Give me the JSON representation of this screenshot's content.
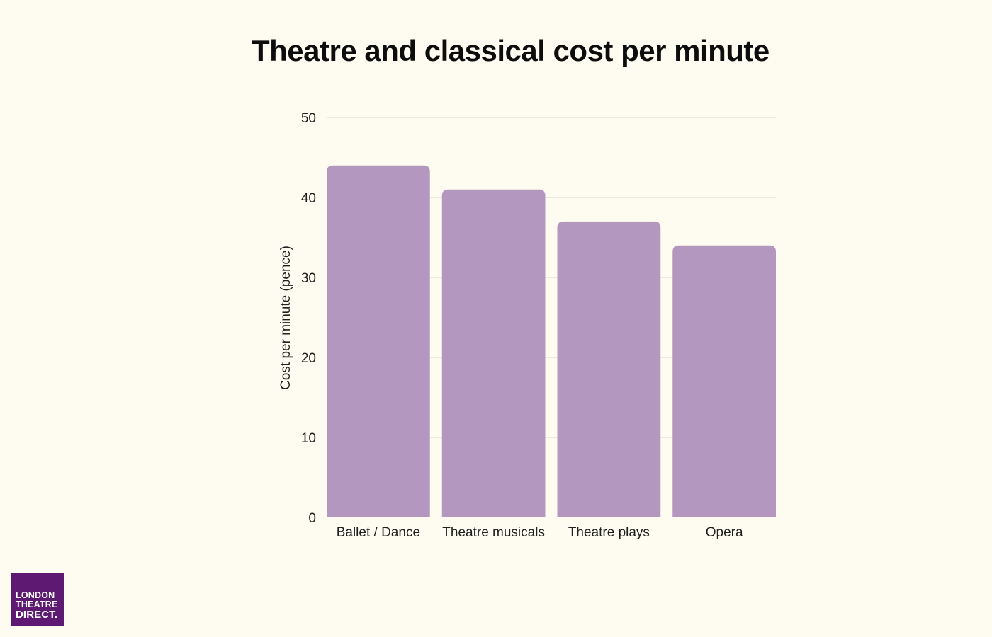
{
  "chart_data": {
    "type": "bar",
    "title": "Theatre and classical cost per minute",
    "xlabel": "",
    "ylabel": "Cost per minute (pence)",
    "categories": [
      "Ballet / Dance",
      "Theatre musicals",
      "Theatre plays",
      "Opera"
    ],
    "values": [
      44,
      41,
      37,
      34
    ],
    "ylim": [
      0,
      50
    ],
    "yticks": [
      0,
      10,
      20,
      30,
      40,
      50
    ],
    "grid": true,
    "legend": "none",
    "colors": {
      "bar": "#b497bf",
      "grid": "#d9d6cc",
      "background": "#fefcf0"
    }
  },
  "logo": {
    "line1": "LONDON",
    "line2": "THEATRE",
    "line3": "DIRECT."
  }
}
